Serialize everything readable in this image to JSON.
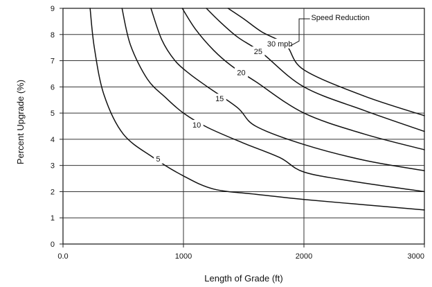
{
  "chart_data": {
    "type": "line",
    "xlabel": "Length of Grade (ft)",
    "ylabel": "Percent Upgrade (%)",
    "xlim": [
      0,
      3000
    ],
    "ylim": [
      0,
      9
    ],
    "grid": true,
    "x_ticks": [
      {
        "value": 0,
        "label": "0.0"
      },
      {
        "value": 1000,
        "label": "1000"
      },
      {
        "value": 2000,
        "label": "2000"
      },
      {
        "value": 3000,
        "label": "3000"
      }
    ],
    "y_ticks": [
      {
        "value": 0,
        "label": "0"
      },
      {
        "value": 1,
        "label": "1"
      },
      {
        "value": 2,
        "label": "2"
      },
      {
        "value": 3,
        "label": "3"
      },
      {
        "value": 4,
        "label": "4"
      },
      {
        "value": 5,
        "label": "5"
      },
      {
        "value": 6,
        "label": "6"
      },
      {
        "value": 7,
        "label": "7"
      },
      {
        "value": 8,
        "label": "8"
      },
      {
        "value": 9,
        "label": "9"
      }
    ],
    "series": [
      {
        "name": "5",
        "label_at": [
          790,
          3.2
        ],
        "points": [
          [
            225,
            9
          ],
          [
            260,
            7.5
          ],
          [
            340,
            5.7
          ],
          [
            500,
            4.2
          ],
          [
            750,
            3.3
          ],
          [
            1000,
            2.6
          ],
          [
            1250,
            2.1
          ],
          [
            1600,
            1.9
          ],
          [
            2000,
            1.7
          ],
          [
            2500,
            1.5
          ],
          [
            3000,
            1.3
          ]
        ]
      },
      {
        "name": "10",
        "label_at": [
          1110,
          4.5
        ],
        "points": [
          [
            490,
            9
          ],
          [
            560,
            7.6
          ],
          [
            700,
            6.3
          ],
          [
            850,
            5.6
          ],
          [
            1000,
            5.0
          ],
          [
            1200,
            4.45
          ],
          [
            1500,
            3.85
          ],
          [
            1800,
            3.3
          ],
          [
            2000,
            2.75
          ],
          [
            2400,
            2.4
          ],
          [
            3000,
            2.0
          ]
        ]
      },
      {
        "name": "15",
        "label_at": [
          1300,
          5.5
        ],
        "points": [
          [
            730,
            9
          ],
          [
            820,
            7.8
          ],
          [
            930,
            7.0
          ],
          [
            1050,
            6.5
          ],
          [
            1200,
            6.0
          ],
          [
            1450,
            5.2
          ],
          [
            1600,
            4.5
          ],
          [
            2000,
            3.8
          ],
          [
            2500,
            3.2
          ],
          [
            3000,
            2.8
          ]
        ]
      },
      {
        "name": "20",
        "label_at": [
          1480,
          6.5
        ],
        "points": [
          [
            990,
            9
          ],
          [
            1100,
            8.2
          ],
          [
            1250,
            7.4
          ],
          [
            1400,
            6.8
          ],
          [
            1600,
            6.2
          ],
          [
            2000,
            5.0
          ],
          [
            2500,
            4.2
          ],
          [
            3000,
            3.6
          ]
        ]
      },
      {
        "name": "25",
        "label_at": [
          1620,
          7.3
        ],
        "points": [
          [
            1190,
            9
          ],
          [
            1300,
            8.5
          ],
          [
            1450,
            7.9
          ],
          [
            1650,
            7.3
          ],
          [
            2000,
            6.0
          ],
          [
            2500,
            5.1
          ],
          [
            3000,
            4.3
          ]
        ]
      },
      {
        "name": "30 mph",
        "label_at": [
          1800,
          7.6
        ],
        "points": [
          [
            1370,
            9
          ],
          [
            1500,
            8.6
          ],
          [
            1650,
            8.1
          ],
          [
            1850,
            7.6
          ],
          [
            2000,
            6.65
          ],
          [
            2500,
            5.65
          ],
          [
            3000,
            4.9
          ]
        ]
      }
    ],
    "annotation": {
      "text": "Speed Reduction",
      "text_at": [
        2060,
        8.6
      ],
      "pointer": [
        [
          2050,
          8.6
        ],
        [
          1960,
          8.6
        ],
        [
          1960,
          7.75
        ],
        [
          1880,
          7.55
        ]
      ]
    }
  }
}
